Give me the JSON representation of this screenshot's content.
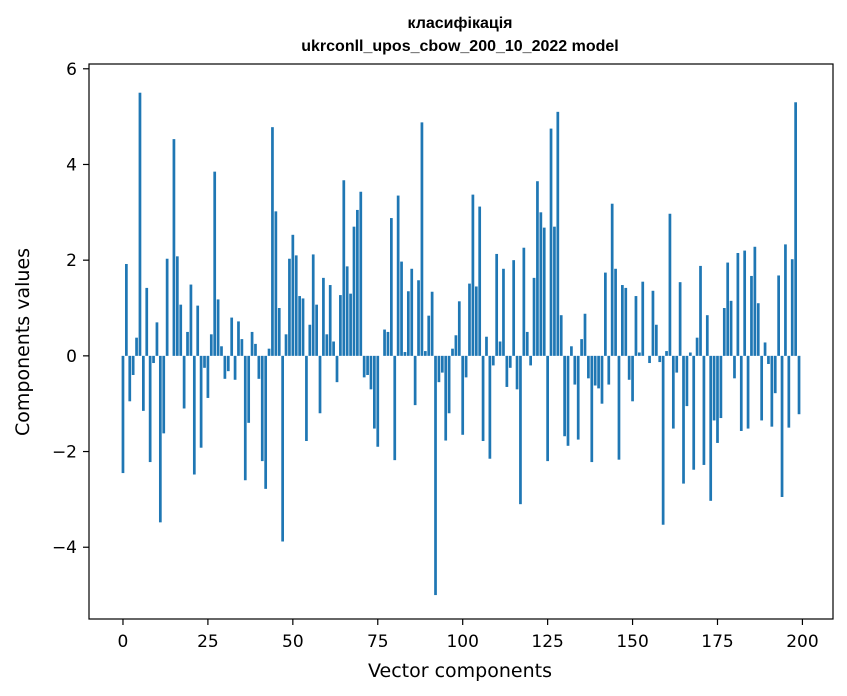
{
  "chart_data": {
    "type": "bar",
    "title": "класифікація",
    "subtitle": "ukrconll_upos_cbow_200_10_2022 model",
    "xlabel": "Vector components",
    "ylabel": "Components values",
    "xlim": [
      -10,
      209
    ],
    "ylim": [
      -5.5,
      6.1
    ],
    "xticks": [
      0,
      25,
      50,
      75,
      100,
      125,
      150,
      175,
      200
    ],
    "yticks": [
      -4,
      -2,
      0,
      2,
      4,
      6
    ],
    "grid": false,
    "bar_color": "#1f77b4",
    "values": [
      -2.45,
      1.92,
      -0.95,
      -0.4,
      0.38,
      5.5,
      -1.15,
      1.42,
      -2.22,
      -0.15,
      0.7,
      -3.48,
      -1.62,
      2.03,
      0.0,
      4.53,
      2.08,
      1.07,
      -1.1,
      0.5,
      1.49,
      -2.48,
      1.05,
      -1.92,
      -0.25,
      -0.88,
      0.45,
      3.85,
      1.18,
      0.2,
      -0.48,
      -0.32,
      0.8,
      -0.5,
      0.72,
      0.35,
      -2.6,
      -1.4,
      0.5,
      0.25,
      -0.48,
      -2.2,
      -2.78,
      0.15,
      4.78,
      3.02,
      1.0,
      -3.88,
      0.45,
      2.03,
      2.53,
      2.1,
      1.25,
      1.2,
      -1.78,
      0.65,
      2.12,
      1.07,
      -1.2,
      1.63,
      0.45,
      1.48,
      0.3,
      -0.55,
      1.27,
      3.67,
      1.87,
      1.3,
      2.7,
      3.05,
      3.43,
      -0.45,
      -0.4,
      -0.7,
      -1.52,
      -1.9,
      0.0,
      0.55,
      0.5,
      2.88,
      -2.18,
      3.35,
      1.97,
      0.08,
      1.35,
      1.82,
      -1.03,
      1.58,
      4.88,
      0.1,
      0.84,
      1.34,
      -5.0,
      -0.55,
      -0.35,
      -1.77,
      -1.2,
      0.15,
      0.43,
      1.14,
      -1.65,
      -0.45,
      1.51,
      3.37,
      1.45,
      3.12,
      -1.78,
      0.4,
      -2.15,
      -0.2,
      2.13,
      0.3,
      1.82,
      -0.65,
      -0.25,
      2.0,
      -0.7,
      -3.1,
      2.26,
      0.5,
      -0.2,
      1.63,
      3.65,
      3.0,
      2.68,
      -2.2,
      4.75,
      2.7,
      5.1,
      0.85,
      -1.68,
      -1.88,
      0.2,
      -0.6,
      -1.75,
      0.35,
      0.88,
      -0.47,
      -2.22,
      -0.62,
      -0.68,
      -1.0,
      1.74,
      -0.6,
      3.18,
      1.82,
      -2.17,
      1.48,
      1.42,
      -0.5,
      -0.95,
      1.25,
      0.07,
      1.55,
      0.0,
      -0.15,
      1.36,
      0.65,
      -0.13,
      -3.53,
      0.1,
      2.97,
      -1.52,
      -0.35,
      1.54,
      -2.67,
      -1.05,
      0.07,
      -2.38,
      0.38,
      1.88,
      -2.28,
      0.85,
      -3.03,
      -1.35,
      -1.82,
      -1.3,
      1.0,
      1.95,
      1.15,
      -0.47,
      2.15,
      -1.57,
      2.2,
      -1.52,
      1.67,
      2.28,
      1.1,
      -1.35,
      0.28,
      -0.17,
      -1.48,
      -0.78,
      1.68,
      -2.95,
      2.33,
      -1.5,
      2.02,
      5.3,
      -1.22
    ]
  }
}
